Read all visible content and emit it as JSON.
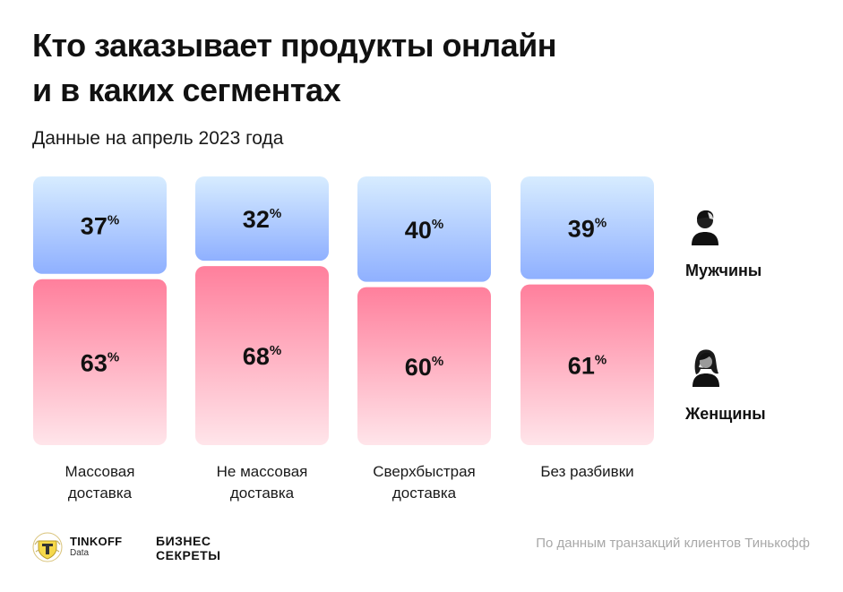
{
  "title_lines": [
    "Кто заказывает продукты онлайн",
    "и в каких сегментах"
  ],
  "subtitle": "Данные на апрель 2023 года",
  "chart_data": {
    "type": "bar",
    "stacked": true,
    "unit": "%",
    "categories": [
      [
        "Массовая",
        "доставка"
      ],
      [
        "Не массовая",
        "доставка"
      ],
      [
        "Сверхбыстрая",
        "доставка"
      ],
      [
        "Без разбивки"
      ]
    ],
    "series": [
      {
        "name": "Мужчины",
        "values": [
          37,
          32,
          40,
          39
        ],
        "color": "#8fb0ff"
      },
      {
        "name": "Женщины",
        "values": [
          63,
          68,
          60,
          61
        ],
        "color": "#ff7f9c"
      }
    ],
    "ylim": [
      0,
      100
    ],
    "legend_position": "right"
  },
  "legend": {
    "men": {
      "label": "Мужчины",
      "icon": "man-icon"
    },
    "women": {
      "label": "Женщины",
      "icon": "woman-icon"
    }
  },
  "footer": {
    "brand": "TINKOFF",
    "brand_sub": "Data",
    "partner_lines": [
      "БИЗНЕС",
      "СЕКРЕТЫ"
    ],
    "source": "По данным транзакций клиентов Тинькофф"
  },
  "colors": {
    "men_top": "#d7ecff",
    "men_bottom": "#8fb0ff",
    "women_top": "#ff7f9c",
    "women_bottom": "#ffe5ea"
  }
}
